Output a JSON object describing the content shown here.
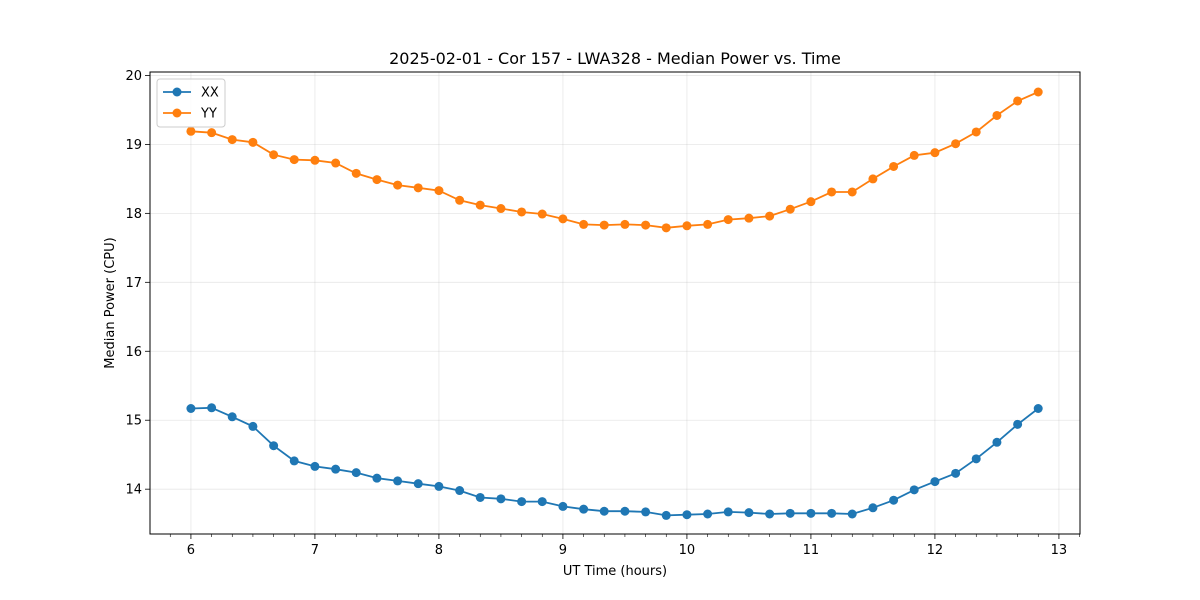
{
  "chart_data": {
    "type": "line",
    "title": "2025-02-01 - Cor 157 - LWA328 - Median Power vs. Time",
    "xlabel": "UT Time (hours)",
    "ylabel": "Median Power (CPU)",
    "xlim": [
      5.67,
      13.17
    ],
    "ylim": [
      13.35,
      20.05
    ],
    "xticks": [
      6,
      7,
      8,
      9,
      10,
      11,
      12,
      13
    ],
    "yticks": [
      14,
      15,
      16,
      17,
      18,
      19,
      20
    ],
    "grid": true,
    "legend_position": "top-left",
    "x": [
      6.0,
      6.167,
      6.333,
      6.5,
      6.667,
      6.833,
      7.0,
      7.167,
      7.333,
      7.5,
      7.667,
      7.833,
      8.0,
      8.167,
      8.333,
      8.5,
      8.667,
      8.833,
      9.0,
      9.167,
      9.333,
      9.5,
      9.667,
      9.833,
      10.0,
      10.167,
      10.333,
      10.5,
      10.667,
      10.833,
      11.0,
      11.167,
      11.333,
      11.5,
      11.667,
      11.833,
      12.0,
      12.167,
      12.333,
      12.5,
      12.667,
      12.833
    ],
    "series": [
      {
        "name": "XX",
        "color": "#1f77b4",
        "values": [
          15.17,
          15.18,
          15.05,
          14.91,
          14.63,
          14.41,
          14.33,
          14.29,
          14.24,
          14.16,
          14.12,
          14.08,
          14.04,
          13.98,
          13.88,
          13.86,
          13.82,
          13.82,
          13.75,
          13.71,
          13.68,
          13.68,
          13.67,
          13.62,
          13.63,
          13.64,
          13.67,
          13.66,
          13.64,
          13.65,
          13.65,
          13.65,
          13.64,
          13.73,
          13.84,
          13.99,
          14.11,
          14.23,
          14.44,
          14.68,
          14.94,
          15.17
        ]
      },
      {
        "name": "YY",
        "color": "#ff7f0e",
        "values": [
          19.19,
          19.17,
          19.07,
          19.03,
          18.85,
          18.78,
          18.77,
          18.73,
          18.58,
          18.49,
          18.41,
          18.37,
          18.33,
          18.19,
          18.12,
          18.07,
          18.02,
          17.99,
          17.92,
          17.84,
          17.83,
          17.84,
          17.83,
          17.79,
          17.82,
          17.84,
          17.91,
          17.93,
          17.96,
          18.06,
          18.17,
          18.31,
          18.31,
          18.5,
          18.68,
          18.84,
          18.88,
          19.01,
          19.18,
          19.42,
          19.63,
          19.76
        ]
      }
    ]
  }
}
